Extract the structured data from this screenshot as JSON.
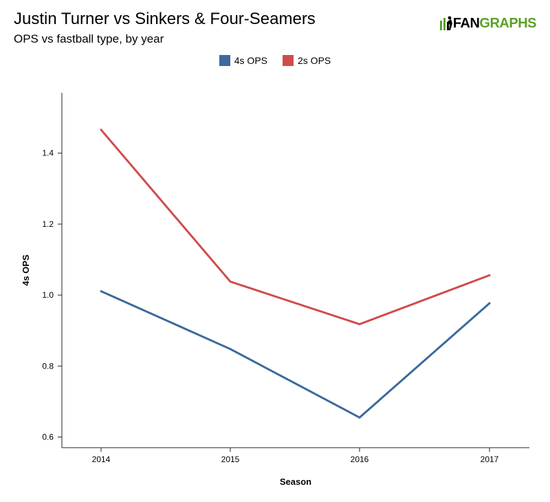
{
  "title": "Justin Turner vs Sinkers & Four-Seamers",
  "subtitle": "OPS vs fastball type, by year",
  "logo": {
    "part1": "FAN",
    "part2": "GRAPHS",
    "icon": "baseball-player-icon"
  },
  "colors": {
    "series1": "#3c6a9c",
    "series2": "#d04c4c",
    "logo_green": "#5aa128"
  },
  "chart_data": {
    "type": "line",
    "x": [
      2014,
      2015,
      2016,
      2017
    ],
    "x_tick_labels": [
      "2014",
      "2015",
      "2016",
      "2017"
    ],
    "y_ticks": [
      0.6,
      0.8,
      1.0,
      1.2,
      1.4
    ],
    "y_tick_labels": [
      "0.6",
      "0.8",
      "1.0",
      "1.2",
      "1.4"
    ],
    "ylim": [
      0.57,
      1.57
    ],
    "xlabel": "Season",
    "ylabel": "4s OPS",
    "legend_position": "top-center",
    "grid": false,
    "series": [
      {
        "name": "4s OPS",
        "color": "#3c6a9c",
        "values": [
          1.011,
          0.848,
          0.655,
          0.977
        ]
      },
      {
        "name": "2s OPS",
        "color": "#d04c4c",
        "values": [
          1.466,
          1.038,
          0.918,
          1.056
        ]
      }
    ]
  }
}
